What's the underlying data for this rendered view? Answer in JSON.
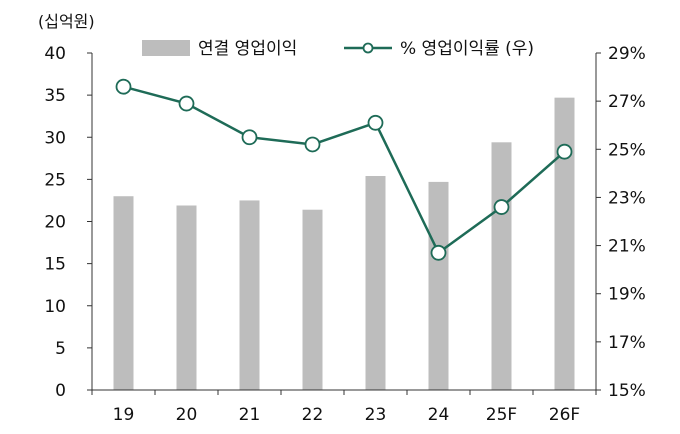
{
  "chart_data": {
    "type": "bar+line",
    "unit_label": "(십억원)",
    "categories": [
      "19",
      "20",
      "21",
      "22",
      "23",
      "24",
      "25F",
      "26F"
    ],
    "series": [
      {
        "name": "연결 영업이익",
        "kind": "bar",
        "axis": "left",
        "color": "#bdbdbd",
        "values": [
          23.0,
          21.9,
          22.5,
          21.4,
          25.4,
          24.7,
          29.4,
          34.7
        ]
      },
      {
        "name": "% 영업이익률 (우)",
        "kind": "line",
        "axis": "right",
        "color": "#1e6b57",
        "values": [
          27.6,
          26.9,
          25.5,
          25.2,
          26.1,
          20.7,
          22.6,
          24.9
        ]
      }
    ],
    "left_axis": {
      "ylim": [
        0,
        40
      ],
      "ticks": [
        "0",
        "5",
        "10",
        "15",
        "20",
        "25",
        "30",
        "35",
        "40"
      ]
    },
    "right_axis": {
      "ylim": [
        15,
        29
      ],
      "ticks": [
        "15%",
        "17%",
        "19%",
        "21%",
        "23%",
        "25%",
        "27%",
        "29%"
      ]
    },
    "legend_position": "top",
    "grid": false
  }
}
